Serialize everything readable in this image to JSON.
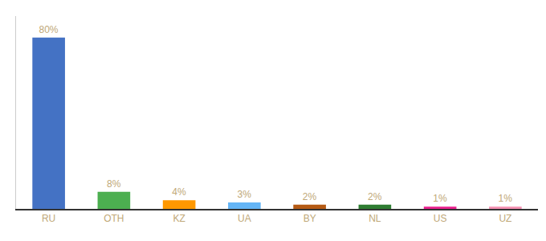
{
  "chart_data": {
    "type": "bar",
    "categories": [
      "RU",
      "OTH",
      "KZ",
      "UA",
      "BY",
      "NL",
      "US",
      "UZ"
    ],
    "values": [
      80,
      8,
      4,
      3,
      2,
      2,
      1,
      1
    ],
    "value_labels": [
      "80%",
      "8%",
      "4%",
      "3%",
      "2%",
      "2%",
      "1%",
      "1%"
    ],
    "colors": [
      "#4472c4",
      "#4caf50",
      "#ff9800",
      "#64b5f6",
      "#b55a14",
      "#2e7d32",
      "#e91e8c",
      "#f48fb1"
    ],
    "ylim": [
      0,
      90
    ],
    "yticks": [],
    "grid": false,
    "data_labels": true,
    "tick_labels": "x"
  }
}
